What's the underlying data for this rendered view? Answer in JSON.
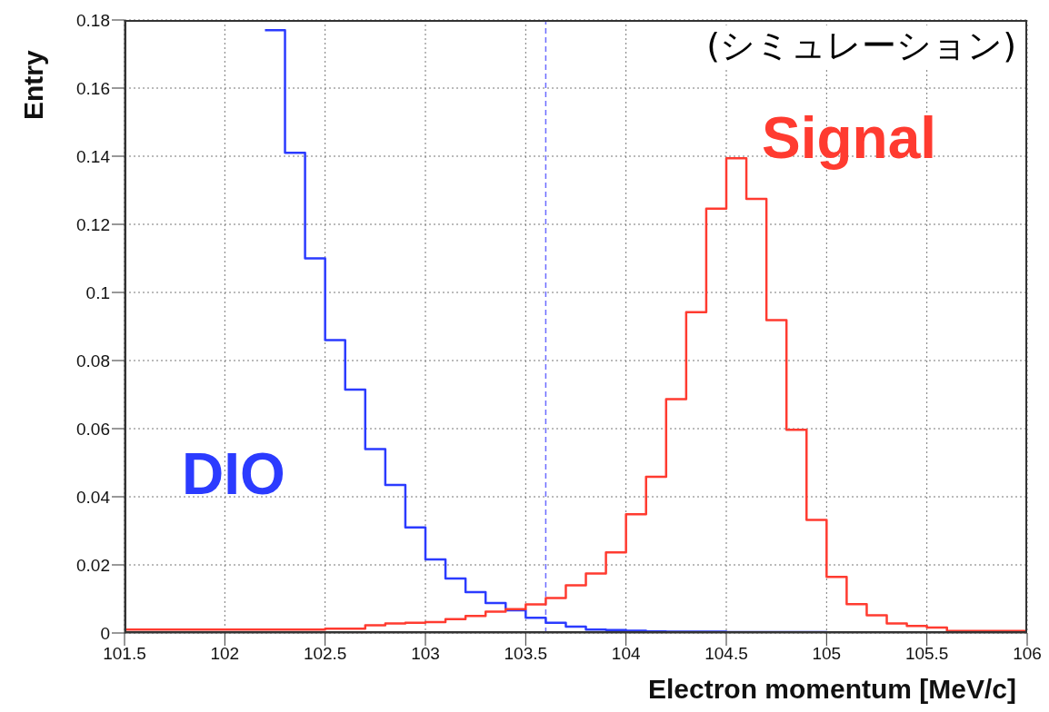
{
  "chart_data": {
    "type": "histogram",
    "xlabel": "Electron momentum [MeV/c]",
    "ylabel": "Entry",
    "annotations": [
      "(シミュレーション)"
    ],
    "bins": [
      101.5,
      101.6,
      101.7,
      101.8,
      101.9,
      102,
      102.1,
      102.2,
      102.3,
      102.4,
      102.5,
      102.6,
      102.7,
      102.8,
      102.9,
      103,
      103.1,
      103.2,
      103.3,
      103.4,
      103.5,
      103.6,
      103.7,
      103.8,
      103.9,
      104,
      104.1,
      104.2,
      104.3,
      104.4,
      104.5,
      104.6,
      104.7,
      104.8,
      104.9,
      105,
      105.1,
      105.2,
      105.3,
      105.4,
      105.5,
      105.6,
      105.7,
      105.8,
      105.9,
      106
    ],
    "series": [
      {
        "name": "DIO",
        "color": "#2b3bff",
        "bins": [
          102.2,
          102.3,
          102.4,
          102.5,
          102.6,
          102.7,
          102.8,
          102.9,
          103,
          103.1,
          103.2,
          103.3,
          103.4,
          103.5,
          103.6,
          103.7,
          103.8,
          103.9,
          104,
          104.1,
          104.2,
          104.3,
          104.4,
          104.5,
          104.6,
          104.7,
          104.8,
          104.9,
          105,
          105.1,
          105.2,
          105.3,
          105.4,
          105.5,
          105.6,
          105.7,
          105.8,
          105.9,
          106
        ],
        "values": [
          0.177,
          0.141,
          0.11,
          0.086,
          0.0715,
          0.054,
          0.0435,
          0.031,
          0.0216,
          0.016,
          0.012,
          0.0088,
          0.0067,
          0.0045,
          0.003,
          0.0019,
          0.001,
          0.0009,
          0.0007,
          0.0005,
          0.0004,
          0.0004,
          0.0004,
          0.0003,
          0.0003,
          0.0003,
          0.0003,
          0.0003,
          0.0002,
          0.0002,
          0.0002,
          0.0002,
          0.0002,
          0.0002,
          0.0002,
          0.0002,
          0.0002,
          0.0002
        ]
      },
      {
        "name": "Signal",
        "color": "#ff3b30",
        "values": [
          0.001,
          0.001,
          0.001,
          0.001,
          0.001,
          0.001,
          0.001,
          0.001,
          0.001,
          0.001,
          0.0013,
          0.0013,
          0.0023,
          0.0028,
          0.003,
          0.0032,
          0.0041,
          0.005,
          0.0063,
          0.007,
          0.0084,
          0.0103,
          0.014,
          0.0175,
          0.0237,
          0.0349,
          0.0459,
          0.0687,
          0.0942,
          0.1246,
          0.1394,
          0.1275,
          0.0919,
          0.0597,
          0.0332,
          0.0165,
          0.0085,
          0.0052,
          0.0028,
          0.0021,
          0.0016,
          0.0006,
          0.0006,
          0.0006,
          0.0006
        ]
      }
    ],
    "xlim": [
      101.5,
      106
    ],
    "xticks": [
      101.5,
      102,
      102.5,
      103,
      103.5,
      104,
      104.5,
      105,
      105.5,
      106
    ],
    "ylim": [
      0,
      0.18
    ],
    "yticks": [
      0,
      0.02,
      0.04,
      0.06,
      0.08,
      0.1,
      0.12,
      0.14,
      0.16,
      0.18
    ],
    "ref_lines": [
      {
        "axis": "x",
        "value": 103.6,
        "color": "#6b6bff",
        "line_style": "dashed"
      }
    ],
    "grid": true,
    "line_style": "solid"
  }
}
